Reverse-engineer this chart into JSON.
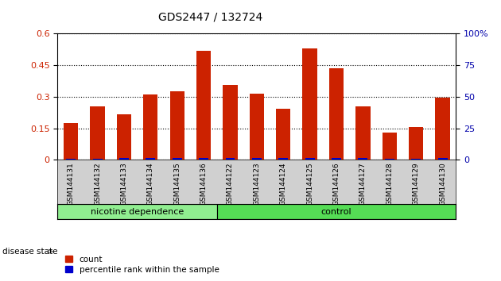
{
  "title": "GDS2447 / 132724",
  "categories": [
    "GSM144131",
    "GSM144132",
    "GSM144133",
    "GSM144134",
    "GSM144135",
    "GSM144136",
    "GSM144122",
    "GSM144123",
    "GSM144124",
    "GSM144125",
    "GSM144126",
    "GSM144127",
    "GSM144128",
    "GSM144129",
    "GSM144130"
  ],
  "count_values": [
    0.175,
    0.255,
    0.215,
    0.31,
    0.325,
    0.52,
    0.355,
    0.315,
    0.245,
    0.53,
    0.435,
    0.255,
    0.13,
    0.155,
    0.295
  ],
  "percentile_values": [
    0.08,
    0.08,
    0.13,
    0.15,
    0.15,
    0.27,
    0.27,
    0.25,
    0.23,
    0.42,
    0.38,
    0.22,
    0.08,
    0.12,
    0.25
  ],
  "groups": [
    "nicotine dependence",
    "nicotine dependence",
    "nicotine dependence",
    "nicotine dependence",
    "nicotine dependence",
    "nicotine dependence",
    "control",
    "control",
    "control",
    "control",
    "control",
    "control",
    "control",
    "control",
    "control"
  ],
  "group_colors": {
    "nicotine dependence": "#90EE90",
    "control": "#55DD55"
  },
  "ylim_left": [
    0,
    0.6
  ],
  "ylim_right": [
    0,
    100
  ],
  "yticks_left": [
    0,
    0.15,
    0.3,
    0.45,
    0.6
  ],
  "yticks_right": [
    0,
    25,
    50,
    75,
    100
  ],
  "bar_color": "#CC2200",
  "percentile_color": "#0000CC",
  "bar_width": 0.55,
  "background_color": "#ffffff",
  "plot_bg_color": "#ffffff",
  "grid_color": "#000000",
  "left_tick_color": "#CC2200",
  "right_tick_color": "#0000AA",
  "legend_items": [
    "count",
    "percentile rank within the sample"
  ],
  "legend_colors": [
    "#CC2200",
    "#0000CC"
  ],
  "disease_state_label": "disease state",
  "group_label_fontsize": 8,
  "tick_label_fontsize": 6.5
}
